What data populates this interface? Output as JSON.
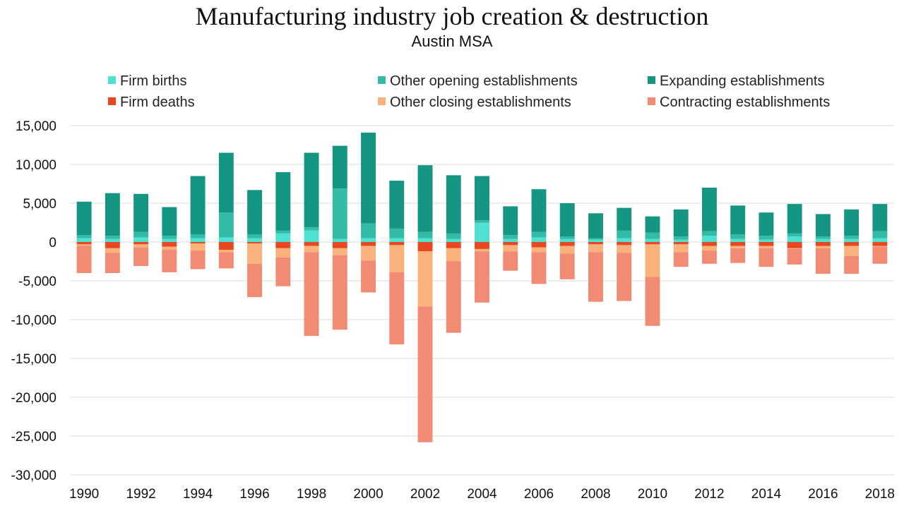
{
  "chart_data": {
    "type": "bar",
    "stacked": true,
    "title": "Manufacturing industry job creation & destruction",
    "subtitle": "Austin MSA",
    "xlabel": "",
    "ylabel": "",
    "ylim": [
      -30000,
      15000
    ],
    "yticks": [
      15000,
      10000,
      5000,
      0,
      -5000,
      -10000,
      -15000,
      -20000,
      -25000,
      -30000
    ],
    "ytick_labels": [
      "15,000",
      "10,000",
      "5,000",
      "0",
      "-5,000",
      "-10,000",
      "-15,000",
      "-20,000",
      "-25,000",
      "-30,000"
    ],
    "x": [
      1990,
      1991,
      1992,
      1993,
      1994,
      1995,
      1996,
      1997,
      1998,
      1999,
      2000,
      2001,
      2002,
      2003,
      2004,
      2005,
      2006,
      2007,
      2008,
      2009,
      2010,
      2011,
      2012,
      2013,
      2014,
      2015,
      2016,
      2017,
      2018
    ],
    "xtick_labels": [
      "1990",
      "",
      "1992",
      "",
      "1994",
      "",
      "1996",
      "",
      "1998",
      "",
      "2000",
      "",
      "2002",
      "",
      "2004",
      "",
      "2006",
      "",
      "2008",
      "",
      "2010",
      "",
      "2012",
      "",
      "2014",
      "",
      "2016",
      "",
      "2018"
    ],
    "grid": true,
    "legend_position": "top",
    "series": [
      {
        "name": "Firm births",
        "color": "#4fe0d4",
        "values": [
          500,
          400,
          600,
          400,
          500,
          600,
          500,
          1100,
          1500,
          400,
          500,
          500,
          500,
          400,
          2500,
          400,
          600,
          400,
          300,
          500,
          400,
          300,
          800,
          400,
          300,
          700,
          400,
          400,
          500
        ]
      },
      {
        "name": "Other opening establishments",
        "color": "#33bba6",
        "values": [
          400,
          400,
          700,
          400,
          500,
          3200,
          500,
          400,
          400,
          6500,
          1900,
          1200,
          800,
          700,
          300,
          500,
          700,
          300,
          200,
          1000,
          800,
          400,
          600,
          600,
          500,
          400,
          300,
          400,
          900
        ]
      },
      {
        "name": "Expanding establishments",
        "color": "#159683",
        "values": [
          4300,
          5500,
          4900,
          3700,
          7500,
          7700,
          5700,
          7500,
          9600,
          5500,
          11700,
          6200,
          8600,
          7500,
          5700,
          3700,
          5500,
          4300,
          3200,
          2900,
          2100,
          3500,
          5600,
          3700,
          3000,
          3800,
          2900,
          3400,
          3500
        ]
      },
      {
        "name": "Firm deaths",
        "color": "#e8471f",
        "values": [
          -300,
          -800,
          -300,
          -600,
          -200,
          -1000,
          -200,
          -800,
          -500,
          -800,
          -500,
          -400,
          -1200,
          -800,
          -900,
          -400,
          -700,
          -500,
          -300,
          -400,
          -300,
          -300,
          -500,
          -500,
          -500,
          -800,
          -500,
          -500,
          -500
        ]
      },
      {
        "name": "Other closing establishments",
        "color": "#f9b27b",
        "values": [
          -200,
          -600,
          -400,
          -400,
          -900,
          -300,
          -2600,
          -1200,
          -800,
          -900,
          -1900,
          -3500,
          -7100,
          -1700,
          -300,
          -800,
          -600,
          -1000,
          -1000,
          -1000,
          -4200,
          -1000,
          -600,
          -300,
          -300,
          -100,
          -300,
          -1300,
          -100
        ]
      },
      {
        "name": "Contracting establishments",
        "color": "#f28b74",
        "values": [
          -3500,
          -2600,
          -2400,
          -2900,
          -2400,
          -2100,
          -4300,
          -3700,
          -10800,
          -9600,
          -4100,
          -9300,
          -17500,
          -9200,
          -6600,
          -2500,
          -4100,
          -3300,
          -6400,
          -6200,
          -6300,
          -1900,
          -1700,
          -1900,
          -2400,
          -2000,
          -3300,
          -2300,
          -2200
        ]
      }
    ]
  }
}
